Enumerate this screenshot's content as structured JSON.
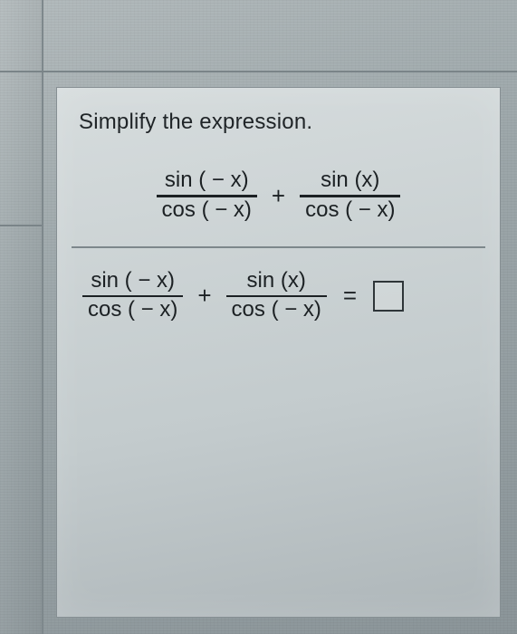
{
  "prompt": "Simplify the expression.",
  "expression": {
    "row1": {
      "frac1": {
        "num": "sin ( − x)",
        "den": "cos ( − x)"
      },
      "op": "+",
      "frac2": {
        "num": "sin (x)",
        "den": "cos ( − x)"
      }
    },
    "row2": {
      "frac1": {
        "num": "sin ( − x)",
        "den": "cos ( − x)"
      },
      "op": "+",
      "frac2": {
        "num": "sin (x)",
        "den": "cos ( − x)"
      },
      "eq": "="
    }
  },
  "style": {
    "text_color": "#1c2124",
    "panel_bg_top": "#d6dcdd",
    "panel_bg_bottom": "#aeb6b9",
    "screen_bg": "#9da7aa",
    "divider_color": "#7d878b",
    "frac_bar_color": "#1c2124",
    "answer_box_border": "#2e3538",
    "font_size_prompt": 24,
    "font_size_math": 24
  }
}
